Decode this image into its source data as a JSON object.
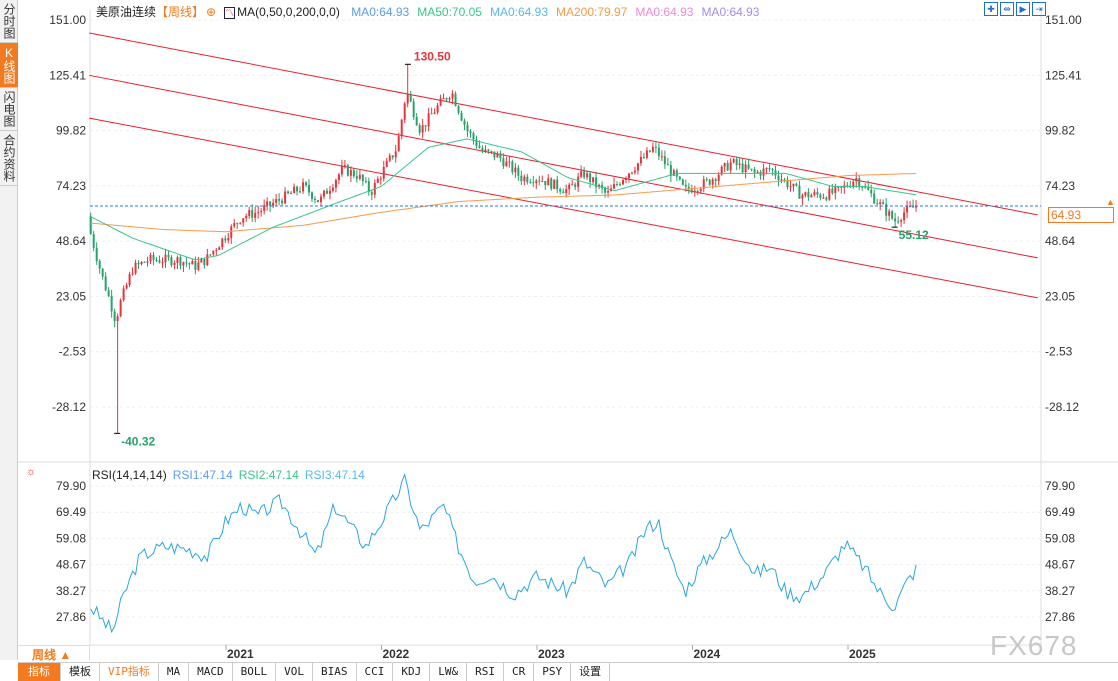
{
  "sidebar": {
    "tabs": [
      {
        "label": "分时图"
      },
      {
        "label": "K线图",
        "active": true
      },
      {
        "label": "闪电图"
      },
      {
        "label": "合约资料"
      }
    ]
  },
  "header": {
    "symbol": "美原油连续",
    "period": "【周线】",
    "indicator": "MA(0,50,0,200,0,0)",
    "ma": [
      {
        "label": "MA0:64.93",
        "color": "#5b9bf0"
      },
      {
        "label": "MA50:70.05",
        "color": "#3cc48a"
      },
      {
        "label": "MA0:64.93",
        "color": "#5bb8f0"
      },
      {
        "label": "MA200:79.97",
        "color": "#f59a4a"
      },
      {
        "label": "MA0:64.93",
        "color": "#ee88d8"
      },
      {
        "label": "MA0:64.93",
        "color": "#9a90f0"
      }
    ]
  },
  "tools": [
    {
      "icon": "crosshair-icon"
    },
    {
      "icon": "zoom-range-icon"
    },
    {
      "icon": "play-icon"
    },
    {
      "icon": "jump-end-icon"
    }
  ],
  "rsi_header": {
    "indicator": "RSI(14,14,14)",
    "values": [
      {
        "label": "RSI1:47.14",
        "color": "#5b9bf0"
      },
      {
        "label": "RSI2:47.14",
        "color": "#3cc48a"
      },
      {
        "label": "RSI3:47.14",
        "color": "#5bb8f0"
      }
    ]
  },
  "current_price": "64.93",
  "period_button": "周线 ▲",
  "bottom_tabs": [
    {
      "label": "指标",
      "active": true
    },
    {
      "label": "模板"
    },
    {
      "label": "VIP指标",
      "vip": true
    },
    {
      "label": "MA"
    },
    {
      "label": "MACD"
    },
    {
      "label": "BOLL"
    },
    {
      "label": "VOL"
    },
    {
      "label": "BIAS"
    },
    {
      "label": "CCI"
    },
    {
      "label": "KDJ"
    },
    {
      "label": "LW&"
    },
    {
      "label": "RSI"
    },
    {
      "label": "CR"
    },
    {
      "label": "PSY"
    },
    {
      "label": "设置"
    }
  ],
  "watermark": "FX678",
  "colors": {
    "up": "#e8333a",
    "down": "#26a26a",
    "channel": "#e8202a",
    "ma50": "#3cc48a",
    "ma200": "#f59a4a",
    "rsi": "#2aa6e0",
    "price_line": "#2a7ad8"
  },
  "chart_data": {
    "type": "candlestick",
    "price_axis": {
      "ticks": [
        "151.00",
        "125.41",
        "99.82",
        "74.23",
        "48.64",
        "23.05",
        "-2.53",
        "-28.12"
      ],
      "range": [
        -28.12,
        151.0
      ]
    },
    "x_axis": {
      "ticks": [
        "2021",
        "2022",
        "2023",
        "2024",
        "2025"
      ]
    },
    "annotations": [
      {
        "label": "130.50",
        "date": 2022.17,
        "value": 130.5
      },
      {
        "label": "-40.32",
        "date": 2020.3,
        "value": -40.32
      },
      {
        "label": "55.12",
        "date": 2025.3,
        "value": 55.12
      }
    ],
    "close_path": [
      [
        2020.13,
        52
      ],
      [
        2020.2,
        33
      ],
      [
        2020.25,
        22
      ],
      [
        2020.29,
        12
      ],
      [
        2020.32,
        20
      ],
      [
        2020.4,
        36
      ],
      [
        2020.5,
        40
      ],
      [
        2020.7,
        40
      ],
      [
        2020.8,
        37
      ],
      [
        2020.87,
        40
      ],
      [
        2020.95,
        47
      ],
      [
        2021.1,
        60
      ],
      [
        2021.2,
        62
      ],
      [
        2021.4,
        70
      ],
      [
        2021.5,
        74
      ],
      [
        2021.6,
        67
      ],
      [
        2021.75,
        82
      ],
      [
        2021.85,
        79
      ],
      [
        2021.93,
        71
      ],
      [
        2022.0,
        80
      ],
      [
        2022.1,
        92
      ],
      [
        2022.16,
        118
      ],
      [
        2022.25,
        100
      ],
      [
        2022.35,
        110
      ],
      [
        2022.45,
        118
      ],
      [
        2022.55,
        100
      ],
      [
        2022.65,
        90
      ],
      [
        2022.75,
        88
      ],
      [
        2022.9,
        78
      ],
      [
        2023.0,
        78
      ],
      [
        2023.2,
        72
      ],
      [
        2023.3,
        80
      ],
      [
        2023.45,
        70
      ],
      [
        2023.55,
        78
      ],
      [
        2023.7,
        88
      ],
      [
        2023.75,
        92
      ],
      [
        2023.85,
        82
      ],
      [
        2023.95,
        72
      ],
      [
        2024.1,
        76
      ],
      [
        2024.25,
        85
      ],
      [
        2024.4,
        80
      ],
      [
        2024.5,
        82
      ],
      [
        2024.6,
        76
      ],
      [
        2024.7,
        70
      ],
      [
        2024.85,
        70
      ],
      [
        2024.95,
        72
      ],
      [
        2025.05,
        78
      ],
      [
        2025.15,
        70
      ],
      [
        2025.25,
        62
      ],
      [
        2025.3,
        58
      ],
      [
        2025.36,
        62
      ],
      [
        2025.44,
        64.93
      ]
    ],
    "ma50": [
      [
        2020.13,
        60
      ],
      [
        2020.4,
        50
      ],
      [
        2020.8,
        40
      ],
      [
        2020.95,
        42
      ],
      [
        2021.3,
        55
      ],
      [
        2021.7,
        66
      ],
      [
        2022.0,
        74
      ],
      [
        2022.3,
        92
      ],
      [
        2022.55,
        96
      ],
      [
        2022.9,
        90
      ],
      [
        2023.2,
        78
      ],
      [
        2023.5,
        72
      ],
      [
        2023.9,
        80
      ],
      [
        2024.3,
        80
      ],
      [
        2024.6,
        80
      ],
      [
        2024.9,
        74
      ],
      [
        2025.1,
        74
      ],
      [
        2025.44,
        70.05
      ]
    ],
    "ma200": [
      [
        2020.13,
        57
      ],
      [
        2020.6,
        54
      ],
      [
        2021.0,
        53
      ],
      [
        2021.5,
        56
      ],
      [
        2022.0,
        62
      ],
      [
        2022.5,
        67
      ],
      [
        2023.0,
        69
      ],
      [
        2023.5,
        70
      ],
      [
        2024.0,
        73
      ],
      [
        2024.5,
        76
      ],
      [
        2025.0,
        79
      ],
      [
        2025.44,
        79.97
      ]
    ],
    "channels": [
      [
        [
          2020.12,
          145
        ],
        [
          2026.22,
          60.8
        ]
      ],
      [
        [
          2020.12,
          125.4
        ],
        [
          2026.22,
          40.9
        ]
      ],
      [
        [
          2020.12,
          105.6
        ],
        [
          2026.22,
          22.4
        ]
      ]
    ],
    "rsi": {
      "ticks": [
        "79.90",
        "69.49",
        "59.08",
        "48.67",
        "38.27",
        "27.86"
      ],
      "range": [
        27.86,
        79.9
      ],
      "path": [
        [
          2020.13,
          32
        ],
        [
          2020.2,
          27
        ],
        [
          2020.27,
          22
        ],
        [
          2020.35,
          38
        ],
        [
          2020.45,
          52
        ],
        [
          2020.6,
          56
        ],
        [
          2020.75,
          55
        ],
        [
          2020.88,
          52
        ],
        [
          2021.0,
          66
        ],
        [
          2021.1,
          72
        ],
        [
          2021.2,
          68
        ],
        [
          2021.35,
          74
        ],
        [
          2021.5,
          60
        ],
        [
          2021.58,
          52
        ],
        [
          2021.7,
          72
        ],
        [
          2021.8,
          64
        ],
        [
          2021.9,
          56
        ],
        [
          2022.0,
          66
        ],
        [
          2022.15,
          82
        ],
        [
          2022.25,
          62
        ],
        [
          2022.4,
          72
        ],
        [
          2022.5,
          55
        ],
        [
          2022.6,
          42
        ],
        [
          2022.7,
          45
        ],
        [
          2022.85,
          37
        ],
        [
          2023.0,
          44
        ],
        [
          2023.2,
          38
        ],
        [
          2023.3,
          50
        ],
        [
          2023.45,
          40
        ],
        [
          2023.6,
          50
        ],
        [
          2023.7,
          63
        ],
        [
          2023.78,
          66
        ],
        [
          2023.85,
          52
        ],
        [
          2023.95,
          38
        ],
        [
          2024.05,
          48
        ],
        [
          2024.25,
          62
        ],
        [
          2024.4,
          45
        ],
        [
          2024.5,
          48
        ],
        [
          2024.6,
          38
        ],
        [
          2024.7,
          36
        ],
        [
          2024.85,
          45
        ],
        [
          2024.98,
          57
        ],
        [
          2025.1,
          48
        ],
        [
          2025.2,
          38
        ],
        [
          2025.3,
          32
        ],
        [
          2025.38,
          42
        ],
        [
          2025.44,
          47.14
        ]
      ]
    }
  }
}
